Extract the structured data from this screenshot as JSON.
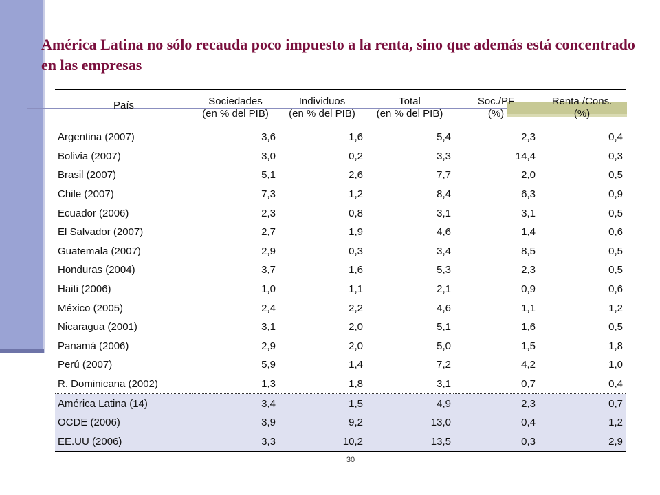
{
  "title": "América Latina no sólo recauda poco impuesto a la renta, sino que además está concentrado en las empresas",
  "table": {
    "header_row1": [
      "País",
      "Sociedades",
      "Individuos",
      "Total",
      "Soc./PF",
      "Renta /Cons."
    ],
    "header_row2": [
      "",
      "(en % del PIB)",
      "(en % del PIB)",
      "(en % del PIB)",
      "(%)",
      "(%)"
    ],
    "rows": [
      [
        "Argentina (2007)",
        "3,6",
        "1,6",
        "5,4",
        "2,3",
        "0,4"
      ],
      [
        "Bolivia (2007)",
        "3,0",
        "0,2",
        "3,3",
        "14,4",
        "0,3"
      ],
      [
        "Brasil (2007)",
        "5,1",
        "2,6",
        "7,7",
        "2,0",
        "0,5"
      ],
      [
        "Chile (2007)",
        "7,3",
        "1,2",
        "8,4",
        "6,3",
        "0,9"
      ],
      [
        "Ecuador (2006)",
        "2,3",
        "0,8",
        "3,1",
        "3,1",
        "0,5"
      ],
      [
        "El Salvador (2007)",
        "2,7",
        "1,9",
        "4,6",
        "1,4",
        "0,6"
      ],
      [
        "Guatemala (2007)",
        "2,9",
        "0,3",
        "3,4",
        "8,5",
        "0,5"
      ],
      [
        "Honduras (2004)",
        "3,7",
        "1,6",
        "5,3",
        "2,3",
        "0,5"
      ],
      [
        "Haiti (2006)",
        "1,0",
        "1,1",
        "2,1",
        "0,9",
        "0,6"
      ],
      [
        "México (2005)",
        "2,4",
        "2,2",
        "4,6",
        "1,1",
        "1,2"
      ],
      [
        "Nicaragua (2001)",
        "3,1",
        "2,0",
        "5,1",
        "1,6",
        "0,5"
      ],
      [
        "Panamá (2006)",
        "2,9",
        "2,0",
        "5,0",
        "1,5",
        "1,8"
      ],
      [
        "Perú (2007)",
        "5,9",
        "1,4",
        "7,2",
        "4,2",
        "1,0"
      ],
      [
        "R. Dominicana (2002)",
        "1,3",
        "1,8",
        "3,1",
        "0,7",
        "0,4"
      ]
    ],
    "summary_rows": [
      [
        "América Latina (14)",
        "3,4",
        "1,5",
        "4,9",
        "2,3",
        "0,7"
      ],
      [
        "OCDE (2006)",
        "3,9",
        "9,2",
        "13,0",
        "0,4",
        "1,2"
      ],
      [
        "EE.UU (2006)",
        "3,3",
        "10,2",
        "13,5",
        "0,3",
        "2,9"
      ]
    ]
  },
  "page_number": "30",
  "colors": {
    "title": "#7a0f3d",
    "sidebar": "#9aa3d4",
    "summary_background": "#dfe1f1",
    "accent_olive": "#c7c995"
  }
}
